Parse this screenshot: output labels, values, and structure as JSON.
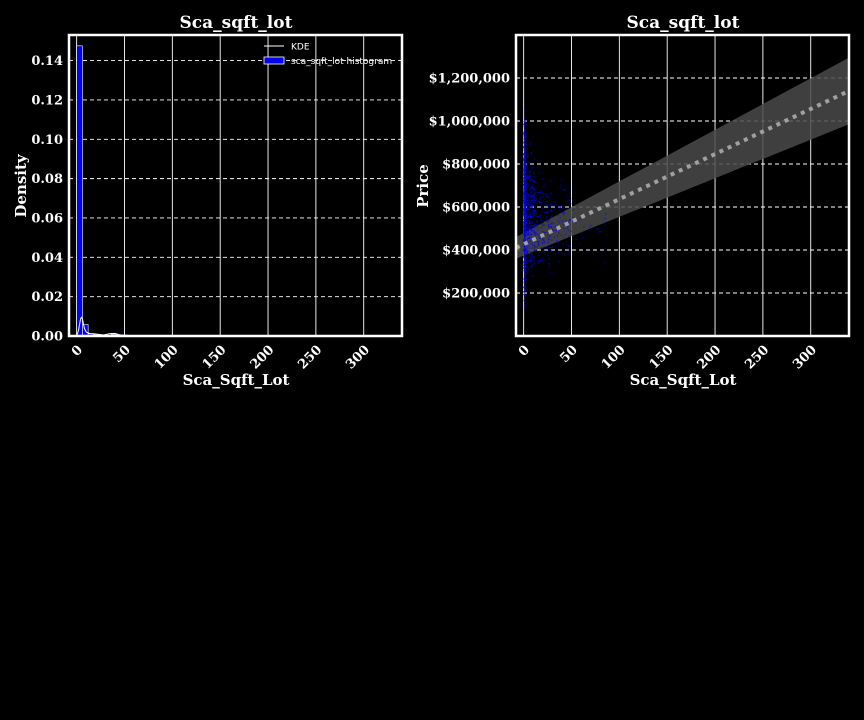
{
  "chart_data": [
    {
      "type": "bar",
      "subtype": "histogram-with-kde",
      "title": "Sca_sqft_lot",
      "xlabel": "Sca_Sqft_Lot",
      "ylabel": "Density",
      "xlim": [
        -8,
        340
      ],
      "ylim": [
        0,
        0.153
      ],
      "xticks": [
        0,
        50,
        100,
        150,
        200,
        250,
        300
      ],
      "yticks": [
        0.0,
        0.02,
        0.04,
        0.06,
        0.08,
        0.1,
        0.12,
        0.14
      ],
      "ytick_labels": [
        "0.00",
        "0.02",
        "0.04",
        "0.06",
        "0.08",
        "0.10",
        "0.12",
        "0.14"
      ],
      "grid": true,
      "legend": {
        "position": "top-right",
        "entries": [
          "KDE",
          "sca_sqft_lot histogram"
        ]
      },
      "bins": [
        {
          "x0": 0,
          "x1": 6,
          "value": 0.1475
        },
        {
          "x0": 6,
          "x1": 12,
          "value": 0.0058
        },
        {
          "x0": 12,
          "x1": 18,
          "value": 0.0012
        },
        {
          "x0": 18,
          "x1": 24,
          "value": 0.0008
        },
        {
          "x0": 24,
          "x1": 30,
          "value": 0.0004
        },
        {
          "x0": 30,
          "x1": 36,
          "value": 0.0003
        },
        {
          "x0": 36,
          "x1": 42,
          "value": 0.0009
        },
        {
          "x0": 42,
          "x1": 48,
          "value": 0.0003
        },
        {
          "x0": 48,
          "x1": 54,
          "value": 0.0001
        }
      ],
      "kde": {
        "x": [
          0,
          2,
          4,
          5,
          6,
          8,
          10,
          14,
          20,
          28,
          35,
          40,
          45,
          60,
          100,
          200,
          300,
          330
        ],
        "y": [
          0.0,
          0.003,
          0.0085,
          0.0095,
          0.0088,
          0.004,
          0.002,
          0.0012,
          0.001,
          0.0005,
          0.0012,
          0.0013,
          0.0006,
          0.0001,
          0.0,
          0.0,
          0.0,
          0.0
        ]
      }
    },
    {
      "type": "scatter",
      "subtype": "scatter-with-regression",
      "title": "Sca_sqft_lot",
      "xlabel": "Sca_Sqft_Lot",
      "ylabel": "Price",
      "xlim": [
        -8,
        340
      ],
      "ylim": [
        0,
        1400000
      ],
      "xticks": [
        0,
        50,
        100,
        150,
        200,
        250,
        300
      ],
      "yticks": [
        200000,
        400000,
        600000,
        800000,
        1000000,
        1200000
      ],
      "ytick_labels": [
        "$200,000",
        "$400,000",
        "$600,000",
        "$800,000",
        "$1,000,000",
        "$1,200,000"
      ],
      "grid": true,
      "point_color": "#0000ff",
      "point_clusters": [
        {
          "x_min": 0,
          "x_max": 2,
          "y_min": 60000,
          "y_max": 1120000,
          "count": 700
        },
        {
          "x_min": 2,
          "x_max": 12,
          "y_min": 150000,
          "y_max": 950000,
          "count": 320
        },
        {
          "x_min": 12,
          "x_max": 30,
          "y_min": 200000,
          "y_max": 850000,
          "count": 160
        },
        {
          "x_min": 30,
          "x_max": 50,
          "y_min": 250000,
          "y_max": 800000,
          "count": 70
        },
        {
          "x_min": 50,
          "x_max": 90,
          "y_min": 300000,
          "y_max": 700000,
          "count": 25
        }
      ],
      "regression": {
        "x": [
          -8,
          340
        ],
        "y": [
          410000,
          1140000
        ],
        "ci_low": [
          360000,
          985000
        ],
        "ci_high": [
          460000,
          1295000
        ],
        "line_color": "#a0a0a0",
        "band_color": "#4a4a4a"
      }
    }
  ]
}
